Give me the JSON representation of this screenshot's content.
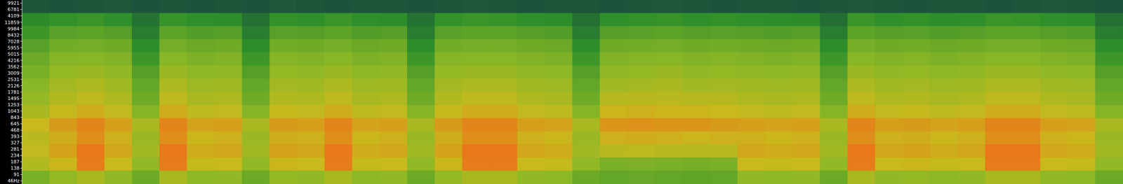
{
  "chart_data": {
    "type": "heatmap",
    "tick_labels": "y",
    "y_labels": [
      "9921",
      "6781",
      "4109",
      "11859",
      "9984",
      "8432",
      "7028",
      "5955",
      "5015",
      "4216",
      "3562",
      "3009",
      "2531",
      "2126",
      "1781",
      "1495",
      "1253",
      "1043",
      "843",
      "645",
      "468",
      "393",
      "327",
      "281",
      "234",
      "187",
      "138",
      "91",
      "46Hz"
    ],
    "zlim": [
      0,
      100
    ],
    "color_stops": [
      0,
      30,
      55,
      70,
      85
    ],
    "colors": [
      "#17483f",
      "#2f8f2a",
      "#8db826",
      "#c9b91c",
      "#e8781a"
    ],
    "cells": [
      [
        6,
        5,
        6,
        7,
        5,
        6,
        5,
        6,
        5,
        7,
        6,
        5,
        6,
        6,
        5,
        6,
        7,
        6,
        5,
        6,
        6,
        5,
        6,
        7,
        6,
        5,
        6,
        6,
        5,
        6,
        7,
        6,
        5,
        6,
        6,
        5,
        6,
        7,
        6,
        5
      ],
      [
        28,
        31,
        33,
        30,
        18,
        32,
        30,
        29,
        17,
        31,
        30,
        33,
        30,
        29,
        18,
        31,
        33,
        32,
        30,
        29,
        17,
        30,
        31,
        32,
        30,
        31,
        30,
        29,
        28,
        16,
        33,
        30,
        31,
        29,
        30,
        33,
        32,
        30,
        29,
        17
      ],
      [
        34,
        41,
        42,
        40,
        22,
        42,
        39,
        40,
        22,
        41,
        40,
        42,
        39,
        40,
        22,
        41,
        42,
        42,
        40,
        39,
        22,
        40,
        41,
        42,
        40,
        41,
        40,
        39,
        40,
        22,
        42,
        40,
        41,
        39,
        40,
        42,
        42,
        40,
        39,
        22
      ],
      [
        41,
        48,
        49,
        47,
        29,
        49,
        46,
        47,
        29,
        48,
        47,
        49,
        46,
        47,
        29,
        48,
        49,
        49,
        47,
        46,
        29,
        47,
        48,
        49,
        47,
        48,
        47,
        46,
        47,
        29,
        49,
        47,
        48,
        46,
        47,
        49,
        49,
        47,
        46,
        29
      ],
      [
        46,
        53,
        54,
        52,
        34,
        54,
        51,
        52,
        34,
        53,
        52,
        54,
        51,
        52,
        34,
        53,
        54,
        54,
        52,
        51,
        34,
        52,
        53,
        54,
        52,
        53,
        52,
        51,
        52,
        34,
        54,
        52,
        53,
        51,
        52,
        54,
        54,
        52,
        51,
        34
      ],
      [
        50,
        57,
        58,
        56,
        40,
        58,
        55,
        56,
        40,
        57,
        56,
        58,
        55,
        56,
        40,
        57,
        58,
        58,
        56,
        55,
        40,
        56,
        57,
        58,
        56,
        57,
        56,
        55,
        56,
        40,
        58,
        56,
        57,
        55,
        56,
        58,
        58,
        56,
        55,
        40
      ],
      [
        54,
        61,
        63,
        60,
        44,
        63,
        59,
        60,
        44,
        61,
        60,
        63,
        59,
        60,
        44,
        61,
        63,
        63,
        60,
        59,
        44,
        60,
        61,
        62,
        60,
        61,
        60,
        59,
        60,
        44,
        63,
        60,
        61,
        59,
        60,
        63,
        63,
        60,
        59,
        44
      ],
      [
        57,
        64,
        67,
        63,
        47,
        67,
        62,
        63,
        47,
        64,
        63,
        67,
        62,
        63,
        47,
        64,
        67,
        67,
        63,
        62,
        47,
        65,
        66,
        66,
        65,
        65,
        63,
        62,
        63,
        47,
        67,
        63,
        64,
        62,
        63,
        67,
        67,
        63,
        62,
        47
      ],
      [
        62,
        69,
        73,
        68,
        53,
        73,
        67,
        68,
        53,
        69,
        68,
        73,
        67,
        68,
        53,
        69,
        73,
        73,
        68,
        67,
        53,
        71,
        72,
        71,
        71,
        70,
        68,
        67,
        68,
        53,
        73,
        68,
        69,
        67,
        68,
        73,
        73,
        68,
        67,
        53
      ],
      [
        70,
        77,
        82,
        76,
        62,
        82,
        75,
        76,
        62,
        77,
        76,
        82,
        75,
        76,
        62,
        77,
        82,
        82,
        76,
        75,
        62,
        78,
        79,
        78,
        78,
        77,
        76,
        75,
        76,
        62,
        82,
        76,
        77,
        75,
        76,
        82,
        82,
        76,
        75,
        62
      ],
      [
        66,
        73,
        80,
        72,
        58,
        80,
        71,
        72,
        58,
        73,
        72,
        80,
        71,
        72,
        58,
        73,
        80,
        80,
        72,
        71,
        58,
        72,
        73,
        72,
        71,
        72,
        72,
        71,
        72,
        58,
        80,
        72,
        73,
        71,
        72,
        80,
        80,
        72,
        71,
        58
      ],
      [
        68,
        75,
        86,
        74,
        60,
        86,
        73,
        74,
        60,
        75,
        74,
        86,
        73,
        74,
        60,
        75,
        86,
        86,
        74,
        73,
        60,
        66,
        67,
        66,
        65,
        66,
        74,
        73,
        74,
        60,
        86,
        74,
        75,
        73,
        74,
        86,
        86,
        74,
        73,
        60
      ],
      [
        64,
        71,
        84,
        70,
        56,
        84,
        69,
        70,
        56,
        71,
        70,
        84,
        69,
        70,
        56,
        71,
        84,
        84,
        70,
        69,
        56,
        50,
        51,
        50,
        49,
        50,
        70,
        69,
        70,
        56,
        84,
        70,
        71,
        69,
        70,
        84,
        84,
        70,
        69,
        56
      ],
      [
        50,
        57,
        62,
        56,
        46,
        62,
        55,
        56,
        46,
        57,
        56,
        62,
        55,
        56,
        46,
        57,
        62,
        62,
        56,
        55,
        46,
        44,
        45,
        44,
        43,
        44,
        56,
        55,
        56,
        46,
        62,
        56,
        57,
        55,
        56,
        62,
        62,
        56,
        55,
        46
      ]
    ]
  }
}
